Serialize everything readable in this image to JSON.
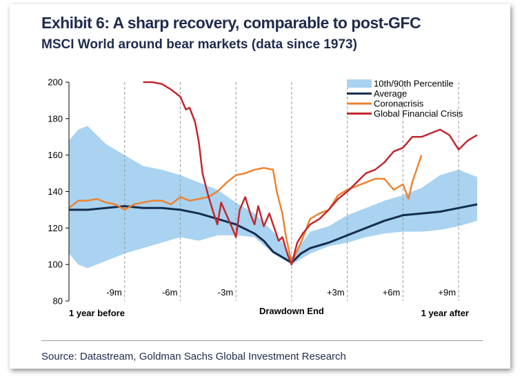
{
  "header": {
    "title": "Exhibit 6: A sharp recovery, comparable to post-GFC",
    "subtitle": "MSCI World around bear markets (data since 1973)"
  },
  "footer": {
    "source": "Source: Datastream, Goldman Sachs Global Investment Research"
  },
  "colors": {
    "band": "#a9d3f0",
    "average": "#142d4e",
    "coronacrisis": "#ee8230",
    "gfc": "#c0272d",
    "text": "#1f2b4d",
    "gridline": "#999999"
  },
  "chart_data": {
    "type": "line",
    "title": "",
    "xlabel": "",
    "ylabel": "",
    "xlim": [
      -12,
      10
    ],
    "ylim": [
      80,
      200
    ],
    "y_ticks": [
      80,
      100,
      120,
      140,
      160,
      180,
      200
    ],
    "x_markers": [
      {
        "x": -9,
        "label": "-9m"
      },
      {
        "x": -6,
        "label": "-6m"
      },
      {
        "x": -3,
        "label": "-3m"
      },
      {
        "x": 0,
        "label": ""
      },
      {
        "x": 3,
        "label": "+3m"
      },
      {
        "x": 6,
        "label": "+6m"
      },
      {
        "x": 9,
        "label": "+9m"
      }
    ],
    "x_axis_labels": {
      "left": "1 year before",
      "center": "Drawdown End",
      "right": "1 year after"
    },
    "legend_position": "top-right",
    "band": {
      "name": "10th/90th Percentile",
      "x": [
        -12,
        -11.5,
        -11,
        -10,
        -9,
        -8,
        -7,
        -6,
        -5,
        -4,
        -3,
        -2,
        -1,
        -0.5,
        0,
        1,
        2,
        3,
        4,
        5,
        6,
        7,
        8,
        9,
        10
      ],
      "upper": [
        168,
        174,
        176,
        166,
        160,
        154,
        152,
        149,
        145,
        141,
        134,
        128,
        118,
        112,
        104,
        118,
        121,
        127,
        131,
        135,
        138,
        142,
        149,
        152,
        148
      ],
      "lower": [
        106,
        100,
        98,
        102,
        106,
        109,
        112,
        115,
        113,
        116,
        116,
        115,
        106,
        103,
        100,
        106,
        110,
        112,
        115,
        117,
        118,
        118,
        119,
        121,
        124
      ]
    },
    "series": [
      {
        "name": "Average",
        "x": [
          -12,
          -11,
          -10,
          -9,
          -8,
          -7,
          -6,
          -5,
          -4,
          -3,
          -2,
          -1.5,
          -1,
          -0.5,
          0,
          0.5,
          1,
          2,
          3,
          4,
          5,
          6,
          7,
          8,
          9,
          10
        ],
        "values": [
          130,
          130,
          131,
          132,
          131,
          131,
          130,
          128,
          125,
          122,
          117,
          113,
          107,
          104,
          101,
          106,
          109,
          112,
          116,
          120,
          124,
          127,
          128,
          129,
          131,
          133
        ]
      },
      {
        "name": "Coronacrisis",
        "x": [
          -12,
          -11.5,
          -11,
          -10.5,
          -10,
          -9.5,
          -9,
          -8.5,
          -8,
          -7.5,
          -7,
          -6.5,
          -6,
          -5.5,
          -5,
          -4.5,
          -4,
          -3.5,
          -3,
          -2.5,
          -2,
          -1.5,
          -1,
          -0.8,
          -0.5,
          -0.3,
          0,
          0.5,
          1,
          1.5,
          2,
          2.5,
          3,
          3.5,
          4,
          4.5,
          5,
          5.5,
          6,
          6.3,
          6.5,
          7
        ],
        "values": [
          131,
          135,
          135,
          136,
          134,
          133,
          130,
          133,
          134,
          135,
          135,
          133,
          137,
          135,
          136,
          137,
          140,
          145,
          149,
          150,
          152,
          153,
          152,
          140,
          128,
          115,
          101,
          112,
          125,
          128,
          130,
          138,
          141,
          143,
          145,
          147,
          147,
          141,
          144,
          136,
          145,
          160
        ]
      },
      {
        "name": "Global Financial Crisis",
        "x": [
          -8,
          -7.5,
          -7,
          -6.5,
          -6,
          -5.7,
          -5.5,
          -5.2,
          -5,
          -4.8,
          -4.5,
          -4.2,
          -4,
          -3.8,
          -3.5,
          -3.2,
          -3,
          -2.8,
          -2.5,
          -2.2,
          -2,
          -1.8,
          -1.5,
          -1.2,
          -1,
          -0.7,
          -0.5,
          -0.2,
          0,
          0.3,
          0.6,
          1,
          1.5,
          2,
          2.5,
          3,
          3.5,
          4,
          4.5,
          5,
          5.5,
          6,
          6.5,
          7,
          7.5,
          8,
          8.5,
          9,
          9.5,
          10
        ],
        "values": [
          200,
          200,
          199,
          196,
          192,
          185,
          186,
          178,
          167,
          150,
          138,
          128,
          122,
          134,
          127,
          120,
          115,
          130,
          137,
          127,
          122,
          132,
          121,
          128,
          122,
          113,
          115,
          105,
          100,
          112,
          117,
          122,
          125,
          130,
          136,
          140,
          145,
          150,
          152,
          156,
          162,
          164,
          170,
          170,
          172,
          174,
          171,
          163,
          168,
          171
        ]
      }
    ]
  }
}
